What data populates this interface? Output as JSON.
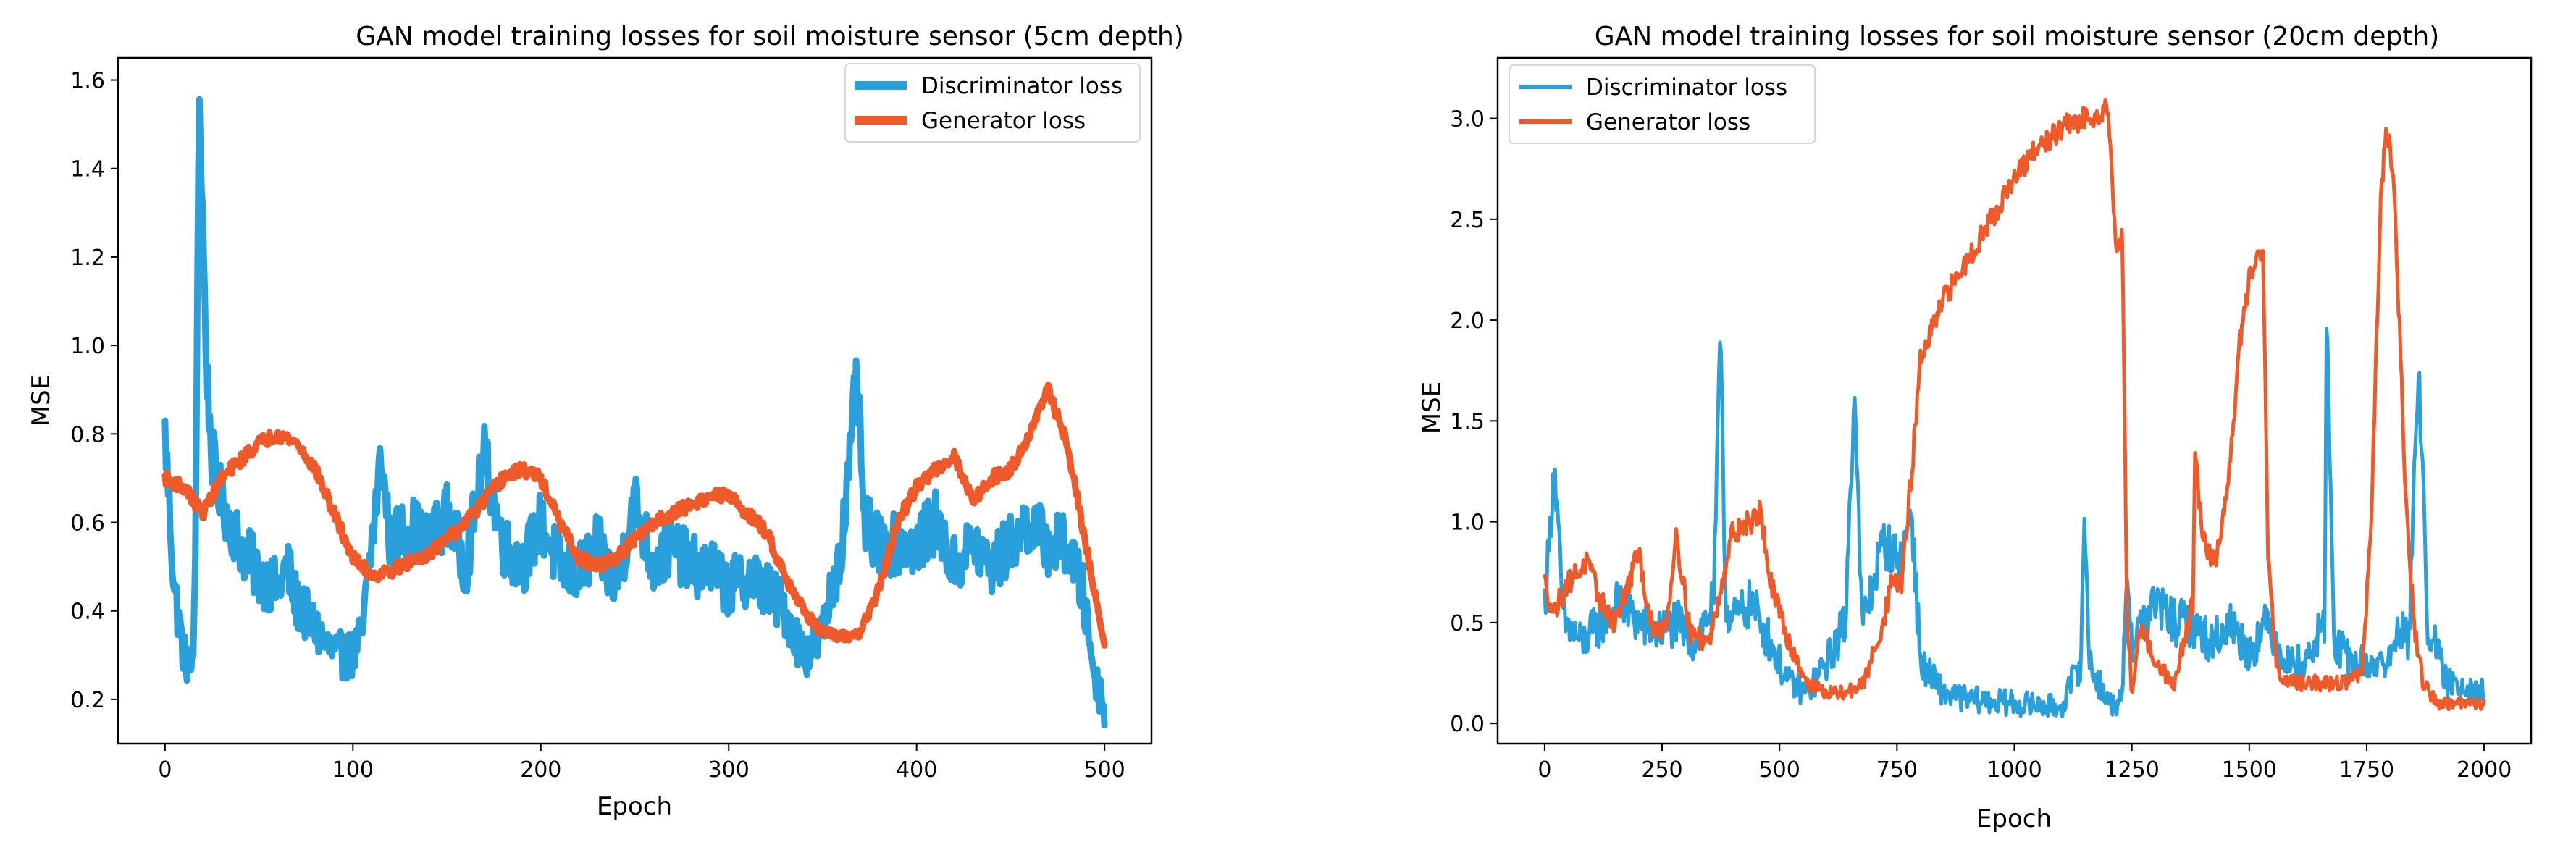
{
  "colors": {
    "discriminator": "#29a0db",
    "generator": "#ee5a2a"
  },
  "chart_data": [
    {
      "type": "line",
      "title": "GAN model training losses for soil moisture sensor (5cm depth)",
      "xlabel": "Epoch",
      "ylabel": "MSE",
      "xlim": [
        -25,
        525
      ],
      "ylim": [
        0.1,
        1.65
      ],
      "xticks": [
        0,
        100,
        200,
        300,
        400,
        500
      ],
      "xtick_labels": [
        "0",
        "100",
        "200",
        "300",
        "400",
        "500"
      ],
      "yticks": [
        0.2,
        0.4,
        0.6,
        0.8,
        1.0,
        1.2,
        1.4,
        1.6
      ],
      "ytick_labels": [
        "0.2",
        "0.4",
        "0.6",
        "0.8",
        "1.0",
        "1.2",
        "1.4",
        "1.6"
      ],
      "legend_position": "top-right",
      "line_width": 9,
      "series": [
        {
          "name": "Discriminator loss",
          "color_key": "discriminator",
          "noise": 0.07,
          "x": [
            0,
            5,
            10,
            14,
            16,
            18,
            20,
            22,
            25,
            30,
            35,
            40,
            50,
            60,
            65,
            70,
            80,
            90,
            100,
            105,
            110,
            115,
            120,
            130,
            140,
            150,
            160,
            170,
            180,
            190,
            200,
            210,
            220,
            230,
            240,
            250,
            260,
            270,
            280,
            290,
            300,
            310,
            320,
            330,
            340,
            345,
            350,
            355,
            360,
            365,
            368,
            372,
            380,
            390,
            400,
            410,
            420,
            430,
            440,
            450,
            460,
            470,
            480,
            488,
            495,
            500
          ],
          "y": [
            0.8,
            0.45,
            0.3,
            0.27,
            0.4,
            1.58,
            1.3,
            0.95,
            0.75,
            0.65,
            0.6,
            0.55,
            0.48,
            0.45,
            0.5,
            0.42,
            0.36,
            0.3,
            0.3,
            0.35,
            0.55,
            0.75,
            0.55,
            0.6,
            0.55,
            0.62,
            0.5,
            0.75,
            0.55,
            0.5,
            0.6,
            0.5,
            0.48,
            0.55,
            0.45,
            0.65,
            0.5,
            0.55,
            0.5,
            0.5,
            0.45,
            0.48,
            0.45,
            0.4,
            0.3,
            0.32,
            0.35,
            0.45,
            0.55,
            0.75,
            0.95,
            0.6,
            0.55,
            0.55,
            0.55,
            0.6,
            0.5,
            0.55,
            0.5,
            0.55,
            0.6,
            0.55,
            0.55,
            0.45,
            0.25,
            0.18
          ]
        },
        {
          "name": "Generator loss",
          "color_key": "generator",
          "noise": 0.015,
          "x": [
            0,
            10,
            20,
            30,
            40,
            50,
            60,
            70,
            80,
            90,
            100,
            105,
            110,
            120,
            130,
            140,
            150,
            160,
            170,
            180,
            190,
            200,
            210,
            220,
            230,
            240,
            250,
            260,
            270,
            280,
            290,
            300,
            310,
            320,
            330,
            340,
            350,
            360,
            370,
            380,
            390,
            400,
            410,
            420,
            430,
            440,
            450,
            460,
            470,
            480,
            490,
            500
          ],
          "y": [
            0.7,
            0.68,
            0.62,
            0.7,
            0.74,
            0.78,
            0.8,
            0.78,
            0.72,
            0.62,
            0.52,
            0.5,
            0.48,
            0.49,
            0.51,
            0.53,
            0.56,
            0.6,
            0.65,
            0.7,
            0.72,
            0.7,
            0.6,
            0.52,
            0.5,
            0.52,
            0.56,
            0.6,
            0.62,
            0.64,
            0.66,
            0.66,
            0.62,
            0.58,
            0.48,
            0.4,
            0.35,
            0.34,
            0.35,
            0.45,
            0.6,
            0.68,
            0.72,
            0.75,
            0.65,
            0.7,
            0.72,
            0.8,
            0.9,
            0.78,
            0.55,
            0.32
          ]
        }
      ]
    },
    {
      "type": "line",
      "title": "GAN model training losses for soil moisture sensor (20cm depth)",
      "xlabel": "Epoch",
      "ylabel": "MSE",
      "xlim": [
        -100,
        2100
      ],
      "ylim": [
        -0.1,
        3.3
      ],
      "xticks": [
        0,
        250,
        500,
        750,
        1000,
        1250,
        1500,
        1750,
        2000
      ],
      "xtick_labels": [
        "0",
        "250",
        "500",
        "750",
        "1000",
        "1250",
        "1500",
        "1750",
        "2000"
      ],
      "yticks": [
        0.0,
        0.5,
        1.0,
        1.5,
        2.0,
        2.5,
        3.0
      ],
      "ytick_labels": [
        "0.0",
        "0.5",
        "1.0",
        "1.5",
        "2.0",
        "2.5",
        "3.0"
      ],
      "legend_position": "top-left",
      "line_width": 5,
      "series": [
        {
          "name": "Discriminator loss",
          "color_key": "discriminator",
          "noise": 0.12,
          "x": [
            0,
            10,
            20,
            40,
            80,
            120,
            160,
            200,
            240,
            280,
            320,
            360,
            375,
            385,
            400,
            440,
            480,
            520,
            560,
            600,
            640,
            660,
            675,
            690,
            720,
            760,
            780,
            800,
            850,
            900,
            1000,
            1100,
            1140,
            1150,
            1160,
            1200,
            1230,
            1240,
            1250,
            1270,
            1300,
            1340,
            1380,
            1420,
            1460,
            1500,
            1540,
            1580,
            1620,
            1660,
            1665,
            1680,
            1720,
            1760,
            1800,
            1820,
            1840,
            1860,
            1880,
            1920,
            1960,
            2000
          ],
          "y": [
            0.6,
            0.9,
            1.3,
            0.5,
            0.4,
            0.5,
            0.6,
            0.5,
            0.45,
            0.5,
            0.4,
            0.6,
            2.0,
            0.6,
            0.5,
            0.6,
            0.4,
            0.2,
            0.15,
            0.3,
            0.5,
            1.7,
            0.5,
            0.6,
            0.9,
            0.8,
            1.1,
            0.3,
            0.15,
            0.12,
            0.1,
            0.08,
            0.3,
            1.0,
            0.3,
            0.1,
            0.1,
            0.8,
            0.4,
            0.5,
            0.6,
            0.5,
            0.5,
            0.4,
            0.5,
            0.35,
            0.5,
            0.3,
            0.3,
            0.5,
            2.05,
            0.4,
            0.3,
            0.3,
            0.3,
            0.5,
            0.4,
            1.8,
            0.5,
            0.2,
            0.2,
            0.15
          ]
        },
        {
          "name": "Generator loss",
          "color_key": "generator",
          "noise": 0.06,
          "x": [
            0,
            20,
            50,
            90,
            120,
            150,
            180,
            200,
            230,
            260,
            280,
            310,
            350,
            400,
            440,
            460,
            480,
            520,
            560,
            600,
            640,
            680,
            720,
            740,
            760,
            780,
            800,
            850,
            900,
            950,
            1000,
            1050,
            1100,
            1150,
            1200,
            1215,
            1230,
            1240,
            1250,
            1270,
            1300,
            1340,
            1380,
            1385,
            1400,
            1430,
            1460,
            1480,
            1500,
            1520,
            1530,
            1540,
            1560,
            1600,
            1650,
            1700,
            1740,
            1760,
            1780,
            1790,
            1800,
            1810,
            1830,
            1850,
            1870,
            1900,
            1950,
            2000
          ],
          "y": [
            0.7,
            0.55,
            0.7,
            0.8,
            0.6,
            0.5,
            0.7,
            0.85,
            0.45,
            0.5,
            0.95,
            0.45,
            0.4,
            0.95,
            1.0,
            1.05,
            0.7,
            0.4,
            0.2,
            0.15,
            0.15,
            0.2,
            0.5,
            0.7,
            0.7,
            1.2,
            1.8,
            2.1,
            2.3,
            2.5,
            2.7,
            2.85,
            2.95,
            3.0,
            3.05,
            2.4,
            2.4,
            0.5,
            0.15,
            0.5,
            0.3,
            0.2,
            0.6,
            1.4,
            0.9,
            0.8,
            1.3,
            1.9,
            2.2,
            2.3,
            2.3,
            0.8,
            0.25,
            0.2,
            0.2,
            0.2,
            0.25,
            1.0,
            2.6,
            2.9,
            2.85,
            2.6,
            1.3,
            0.5,
            0.2,
            0.1,
            0.1,
            0.1
          ]
        }
      ]
    }
  ]
}
